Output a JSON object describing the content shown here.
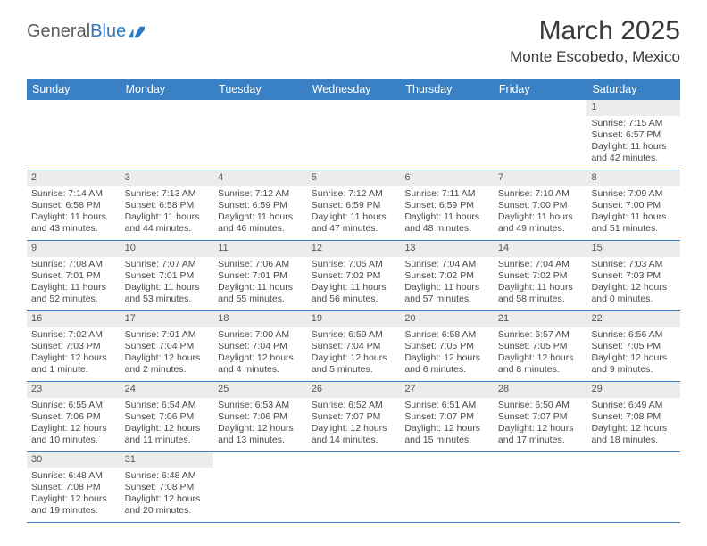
{
  "logo": {
    "dark": "General",
    "blue": "Blue"
  },
  "title": "March 2025",
  "location": "Monte Escobedo, Mexico",
  "colors": {
    "header_bg": "#3a80c4",
    "header_text": "#ffffff",
    "daynum_bg": "#ececec",
    "border": "#3a80c4",
    "text": "#4a4a4a",
    "logo_dark": "#5c5c5c",
    "logo_blue": "#2f78bd"
  },
  "day_labels": [
    "Sunday",
    "Monday",
    "Tuesday",
    "Wednesday",
    "Thursday",
    "Friday",
    "Saturday"
  ],
  "weeks": [
    [
      null,
      null,
      null,
      null,
      null,
      null,
      {
        "n": "1",
        "sr": "Sunrise: 7:15 AM",
        "ss": "Sunset: 6:57 PM",
        "d1": "Daylight: 11 hours",
        "d2": "and 42 minutes."
      }
    ],
    [
      {
        "n": "2",
        "sr": "Sunrise: 7:14 AM",
        "ss": "Sunset: 6:58 PM",
        "d1": "Daylight: 11 hours",
        "d2": "and 43 minutes."
      },
      {
        "n": "3",
        "sr": "Sunrise: 7:13 AM",
        "ss": "Sunset: 6:58 PM",
        "d1": "Daylight: 11 hours",
        "d2": "and 44 minutes."
      },
      {
        "n": "4",
        "sr": "Sunrise: 7:12 AM",
        "ss": "Sunset: 6:59 PM",
        "d1": "Daylight: 11 hours",
        "d2": "and 46 minutes."
      },
      {
        "n": "5",
        "sr": "Sunrise: 7:12 AM",
        "ss": "Sunset: 6:59 PM",
        "d1": "Daylight: 11 hours",
        "d2": "and 47 minutes."
      },
      {
        "n": "6",
        "sr": "Sunrise: 7:11 AM",
        "ss": "Sunset: 6:59 PM",
        "d1": "Daylight: 11 hours",
        "d2": "and 48 minutes."
      },
      {
        "n": "7",
        "sr": "Sunrise: 7:10 AM",
        "ss": "Sunset: 7:00 PM",
        "d1": "Daylight: 11 hours",
        "d2": "and 49 minutes."
      },
      {
        "n": "8",
        "sr": "Sunrise: 7:09 AM",
        "ss": "Sunset: 7:00 PM",
        "d1": "Daylight: 11 hours",
        "d2": "and 51 minutes."
      }
    ],
    [
      {
        "n": "9",
        "sr": "Sunrise: 7:08 AM",
        "ss": "Sunset: 7:01 PM",
        "d1": "Daylight: 11 hours",
        "d2": "and 52 minutes."
      },
      {
        "n": "10",
        "sr": "Sunrise: 7:07 AM",
        "ss": "Sunset: 7:01 PM",
        "d1": "Daylight: 11 hours",
        "d2": "and 53 minutes."
      },
      {
        "n": "11",
        "sr": "Sunrise: 7:06 AM",
        "ss": "Sunset: 7:01 PM",
        "d1": "Daylight: 11 hours",
        "d2": "and 55 minutes."
      },
      {
        "n": "12",
        "sr": "Sunrise: 7:05 AM",
        "ss": "Sunset: 7:02 PM",
        "d1": "Daylight: 11 hours",
        "d2": "and 56 minutes."
      },
      {
        "n": "13",
        "sr": "Sunrise: 7:04 AM",
        "ss": "Sunset: 7:02 PM",
        "d1": "Daylight: 11 hours",
        "d2": "and 57 minutes."
      },
      {
        "n": "14",
        "sr": "Sunrise: 7:04 AM",
        "ss": "Sunset: 7:02 PM",
        "d1": "Daylight: 11 hours",
        "d2": "and 58 minutes."
      },
      {
        "n": "15",
        "sr": "Sunrise: 7:03 AM",
        "ss": "Sunset: 7:03 PM",
        "d1": "Daylight: 12 hours",
        "d2": "and 0 minutes."
      }
    ],
    [
      {
        "n": "16",
        "sr": "Sunrise: 7:02 AM",
        "ss": "Sunset: 7:03 PM",
        "d1": "Daylight: 12 hours",
        "d2": "and 1 minute."
      },
      {
        "n": "17",
        "sr": "Sunrise: 7:01 AM",
        "ss": "Sunset: 7:04 PM",
        "d1": "Daylight: 12 hours",
        "d2": "and 2 minutes."
      },
      {
        "n": "18",
        "sr": "Sunrise: 7:00 AM",
        "ss": "Sunset: 7:04 PM",
        "d1": "Daylight: 12 hours",
        "d2": "and 4 minutes."
      },
      {
        "n": "19",
        "sr": "Sunrise: 6:59 AM",
        "ss": "Sunset: 7:04 PM",
        "d1": "Daylight: 12 hours",
        "d2": "and 5 minutes."
      },
      {
        "n": "20",
        "sr": "Sunrise: 6:58 AM",
        "ss": "Sunset: 7:05 PM",
        "d1": "Daylight: 12 hours",
        "d2": "and 6 minutes."
      },
      {
        "n": "21",
        "sr": "Sunrise: 6:57 AM",
        "ss": "Sunset: 7:05 PM",
        "d1": "Daylight: 12 hours",
        "d2": "and 8 minutes."
      },
      {
        "n": "22",
        "sr": "Sunrise: 6:56 AM",
        "ss": "Sunset: 7:05 PM",
        "d1": "Daylight: 12 hours",
        "d2": "and 9 minutes."
      }
    ],
    [
      {
        "n": "23",
        "sr": "Sunrise: 6:55 AM",
        "ss": "Sunset: 7:06 PM",
        "d1": "Daylight: 12 hours",
        "d2": "and 10 minutes."
      },
      {
        "n": "24",
        "sr": "Sunrise: 6:54 AM",
        "ss": "Sunset: 7:06 PM",
        "d1": "Daylight: 12 hours",
        "d2": "and 11 minutes."
      },
      {
        "n": "25",
        "sr": "Sunrise: 6:53 AM",
        "ss": "Sunset: 7:06 PM",
        "d1": "Daylight: 12 hours",
        "d2": "and 13 minutes."
      },
      {
        "n": "26",
        "sr": "Sunrise: 6:52 AM",
        "ss": "Sunset: 7:07 PM",
        "d1": "Daylight: 12 hours",
        "d2": "and 14 minutes."
      },
      {
        "n": "27",
        "sr": "Sunrise: 6:51 AM",
        "ss": "Sunset: 7:07 PM",
        "d1": "Daylight: 12 hours",
        "d2": "and 15 minutes."
      },
      {
        "n": "28",
        "sr": "Sunrise: 6:50 AM",
        "ss": "Sunset: 7:07 PM",
        "d1": "Daylight: 12 hours",
        "d2": "and 17 minutes."
      },
      {
        "n": "29",
        "sr": "Sunrise: 6:49 AM",
        "ss": "Sunset: 7:08 PM",
        "d1": "Daylight: 12 hours",
        "d2": "and 18 minutes."
      }
    ],
    [
      {
        "n": "30",
        "sr": "Sunrise: 6:48 AM",
        "ss": "Sunset: 7:08 PM",
        "d1": "Daylight: 12 hours",
        "d2": "and 19 minutes."
      },
      {
        "n": "31",
        "sr": "Sunrise: 6:48 AM",
        "ss": "Sunset: 7:08 PM",
        "d1": "Daylight: 12 hours",
        "d2": "and 20 minutes."
      },
      null,
      null,
      null,
      null,
      null
    ]
  ]
}
